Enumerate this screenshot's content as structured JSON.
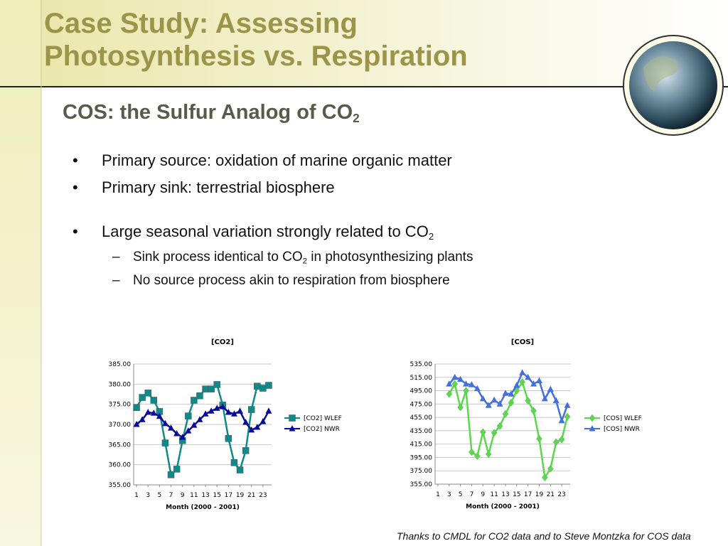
{
  "slide": {
    "title_lines": [
      "Case Study:  Assessing",
      "Photosynthesis vs. Respiration"
    ],
    "subtitle": {
      "text": "COS:  the Sulfur Analog of CO",
      "sub": "2"
    },
    "bullets": [
      {
        "level": 1,
        "text": "Primary source:  oxidation of marine organic matter"
      },
      {
        "level": 1,
        "text": "Primary sink:  terrestrial biosphere"
      },
      {
        "level": 1,
        "text": "Large seasonal variation strongly related to CO",
        "sub": "2",
        "gap": true
      },
      {
        "level": 2,
        "text": "Sink process identical to CO",
        "sub": "2",
        "after": " in photosynthesizing plants"
      },
      {
        "level": 2,
        "text": "No source process akin to respiration from biosphere"
      }
    ],
    "credit": "Thanks to CMDL for CO2 data and to Steve Montzka for COS data"
  },
  "chart_data": [
    {
      "type": "line",
      "title": "[CO2]",
      "x_label": "Month (2000 - 2001)",
      "x": [
        1,
        2,
        3,
        4,
        5,
        6,
        7,
        8,
        9,
        10,
        11,
        12,
        13,
        14,
        15,
        16,
        17,
        18,
        19,
        20,
        21,
        22,
        23,
        24
      ],
      "series": [
        {
          "name": "[CO2] WLEF",
          "color": "#0f8a8a",
          "marker": "square",
          "values": [
            374.2,
            376.7,
            377.8,
            376.0,
            373.2,
            365.4,
            357.5,
            358.9,
            366.0,
            372.1,
            376.0,
            377.1,
            378.8,
            378.8,
            379.9,
            374.8,
            366.5,
            360.5,
            358.7,
            363.5,
            373.7,
            379.5,
            379.0,
            379.7
          ]
        },
        {
          "name": "[CO2] NWR",
          "color": "#0a0a9a",
          "marker": "triangle",
          "values": [
            370.0,
            371.2,
            373.0,
            372.8,
            372.0,
            370.2,
            369.1,
            367.7,
            366.8,
            368.4,
            369.8,
            371.2,
            372.6,
            373.3,
            374.0,
            374.4,
            373.0,
            372.6,
            373.3,
            370.5,
            368.6,
            369.3,
            370.7,
            373.3
          ]
        }
      ],
      "xlim": [
        0.5,
        24.5
      ],
      "xticks": [
        1,
        3,
        5,
        7,
        9,
        11,
        13,
        15,
        17,
        19,
        21,
        23
      ],
      "ylim": [
        355,
        385
      ],
      "yticks": [
        {
          "value": 355,
          "label": "355.00"
        },
        {
          "value": 360,
          "label": "360.00"
        },
        {
          "value": 365,
          "label": "365.00"
        },
        {
          "value": 370,
          "label": "370.00"
        },
        {
          "value": 375,
          "label": "375.00"
        },
        {
          "value": 380,
          "label": "380.00"
        },
        {
          "value": 385,
          "label": "385.00"
        }
      ],
      "grid": true,
      "legend": "right"
    },
    {
      "type": "line",
      "title": "[COS]",
      "x_label": "Month (2000 - 2001)",
      "x": [
        1,
        2,
        3,
        4,
        5,
        6,
        7,
        8,
        9,
        10,
        11,
        12,
        13,
        14,
        15,
        16,
        17,
        18,
        19,
        20,
        21,
        22,
        23,
        24
      ],
      "series": [
        {
          "name": "[COS] WLEF",
          "color": "#5cd84c",
          "marker": "diamond",
          "values": [
            null,
            null,
            490,
            505,
            470,
            495,
            403,
            397,
            433,
            400,
            432,
            442,
            460,
            477,
            495,
            508,
            480,
            465,
            423,
            365,
            378,
            418,
            422,
            456
          ]
        },
        {
          "name": "[COS] NWR",
          "color": "#4470dd",
          "marker": "triangle",
          "values": [
            null,
            null,
            505,
            515,
            512,
            505,
            504,
            498,
            483,
            473,
            481,
            475,
            491,
            490,
            503,
            522,
            515,
            505,
            510,
            483,
            497,
            480,
            450,
            473
          ]
        }
      ],
      "xlim": [
        0.5,
        24.5
      ],
      "xticks": [
        1,
        3,
        5,
        7,
        9,
        11,
        13,
        15,
        17,
        19,
        21,
        23
      ],
      "ylim": [
        355,
        535
      ],
      "yticks": [
        {
          "value": 355,
          "label": "355.00"
        },
        {
          "value": 375,
          "label": "375.00"
        },
        {
          "value": 395,
          "label": "395.00"
        },
        {
          "value": 415,
          "label": "415.00"
        },
        {
          "value": 435,
          "label": "435.00"
        },
        {
          "value": 455,
          "label": "455.00"
        },
        {
          "value": 475,
          "label": "475.00"
        },
        {
          "value": 495,
          "label": "495.00"
        },
        {
          "value": 515,
          "label": "515.00"
        },
        {
          "value": 535,
          "label": "535.00"
        }
      ],
      "grid": true,
      "legend": "right"
    }
  ]
}
